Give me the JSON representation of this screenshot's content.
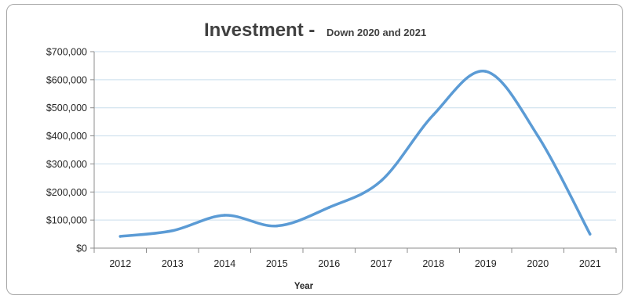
{
  "chart_data": {
    "type": "line",
    "title": "Investment - ",
    "subtitle": "Down 2020 and 2021",
    "xlabel": "Year",
    "ylabel": "",
    "categories": [
      "2012",
      "2013",
      "2014",
      "2015",
      "2016",
      "2017",
      "2018",
      "2019",
      "2020",
      "2021"
    ],
    "series": [
      {
        "values": [
          42000,
          62000,
          117000,
          79000,
          145000,
          240000,
          475000,
          630000,
          400000,
          50000
        ]
      }
    ],
    "ylim": [
      0,
      700000
    ],
    "yticks": [
      0,
      100000,
      200000,
      300000,
      400000,
      500000,
      600000,
      700000
    ],
    "ytick_labels": [
      "$0",
      "$100,000",
      "$200,000",
      "$300,000",
      "$400,000",
      "$500,000",
      "$600,000",
      "$700,000"
    ],
    "grid": "horizontal",
    "smooth": true,
    "legend": "none",
    "colors": {
      "series": "#5b9bd5",
      "gridline": "#c9ddec",
      "axis": "#8c8c8c",
      "text": "#262626",
      "title": "#404040",
      "frame": "#a6a6a6"
    }
  }
}
